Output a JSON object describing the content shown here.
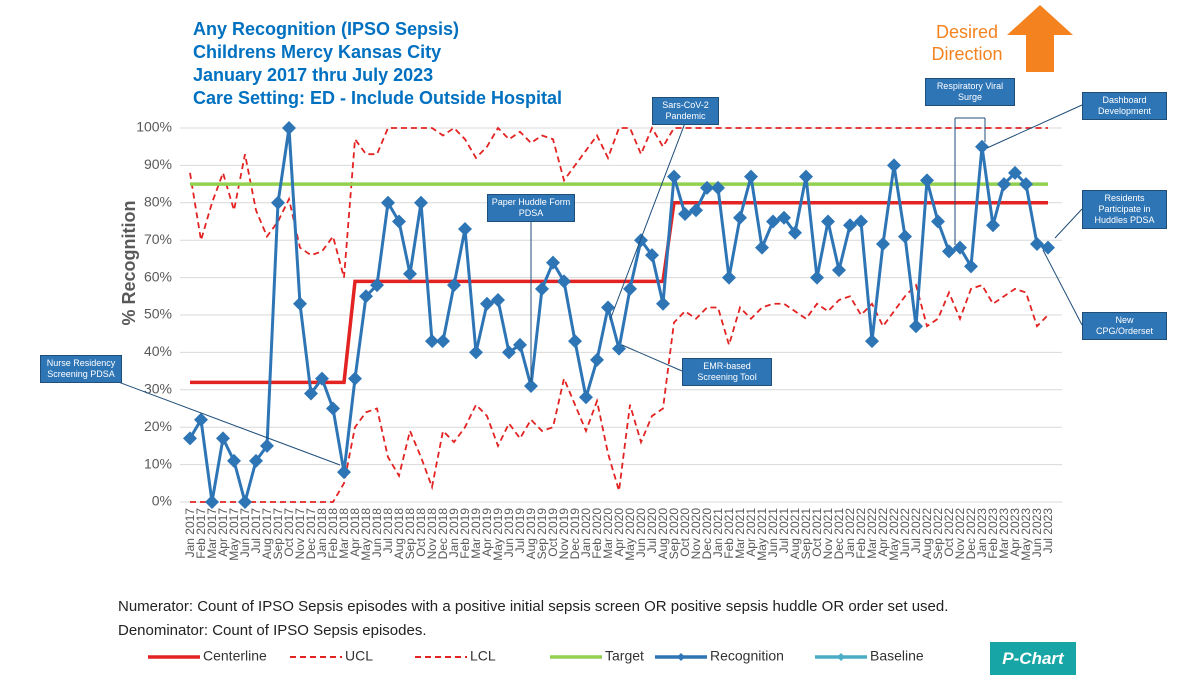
{
  "chart_data": {
    "type": "line",
    "title": [
      "Any Recognition (IPSO Sepsis)",
      "Childrens Mercy Kansas City",
      "January 2017 thru July 2023",
      "Care Setting:  ED  - Include Outside Hospital"
    ],
    "y_label": "% Recognition",
    "desired_direction": "Desired Direction",
    "footnotes": [
      "Numerator:  Count of IPSO Sepsis episodes with a positive initial sepsis screen OR positive sepsis huddle OR order set used.",
      "Denominator:  Count of IPSO Sepsis episodes."
    ],
    "chart_kind": "P-Chart",
    "categories": [
      "Jan 2017",
      "Feb 2017",
      "Mar 2017",
      "Apr 2017",
      "May 2017",
      "Jun 2017",
      "Jul 2017",
      "Aug 2017",
      "Sep 2017",
      "Oct 2017",
      "Nov 2017",
      "Dec 2017",
      "Jan 2018",
      "Feb 2018",
      "Mar 2018",
      "Apr 2018",
      "May 2018",
      "Jun 2018",
      "Jul 2018",
      "Aug 2018",
      "Sep 2018",
      "Oct 2018",
      "Nov 2018",
      "Dec 2018",
      "Jan 2019",
      "Feb 2019",
      "Mar 2019",
      "Apr 2019",
      "May 2019",
      "Jun 2019",
      "Jul 2019",
      "Aug 2019",
      "Sep 2019",
      "Oct 2019",
      "Nov 2019",
      "Dec 2019",
      "Jan 2020",
      "Feb 2020",
      "Mar 2020",
      "Apr 2020",
      "May 2020",
      "Jun 2020",
      "Jul 2020",
      "Aug 2020",
      "Sep 2020",
      "Oct 2020",
      "Nov 2020",
      "Dec 2020",
      "Jan 2021",
      "Feb 2021",
      "Mar 2021",
      "Apr 2021",
      "May 2021",
      "Jun 2021",
      "Jul 2021",
      "Aug 2021",
      "Sep 2021",
      "Oct 2021",
      "Nov 2021",
      "Dec 2021",
      "Jan 2022",
      "Feb 2022",
      "Mar 2022",
      "Apr 2022",
      "May 2022",
      "Jun 2022",
      "Jul 2022",
      "Aug 2022",
      "Sep 2022",
      "Oct 2022",
      "Nov 2022",
      "Dec 2022",
      "Jan 2023",
      "Feb 2023",
      "Mar 2023",
      "Apr 2023",
      "May 2023",
      "Jun 2023",
      "Jul 2023"
    ],
    "series": [
      {
        "name": "Centerline",
        "color": "#e32222",
        "dash": false,
        "values": [
          32,
          32,
          32,
          32,
          32,
          32,
          32,
          32,
          32,
          32,
          32,
          32,
          32,
          32,
          32,
          59,
          59,
          59,
          59,
          59,
          59,
          59,
          59,
          59,
          59,
          59,
          59,
          59,
          59,
          59,
          59,
          59,
          59,
          59,
          59,
          59,
          59,
          59,
          59,
          59,
          59,
          59,
          59,
          59,
          80,
          80,
          80,
          80,
          80,
          80,
          80,
          80,
          80,
          80,
          80,
          80,
          80,
          80,
          80,
          80,
          80,
          80,
          80,
          80,
          80,
          80,
          80,
          80,
          80,
          80,
          80,
          80,
          80,
          80,
          80,
          80,
          80,
          80,
          80
        ]
      },
      {
        "name": "UCL",
        "color": "#e32222",
        "dash": true,
        "values": [
          88,
          70,
          80,
          88,
          78,
          93,
          78,
          71,
          75,
          81,
          68,
          66,
          67,
          71,
          60,
          97,
          93,
          93,
          100,
          100,
          100,
          100,
          100,
          98,
          100,
          97,
          92,
          95,
          100,
          97,
          99,
          96,
          98,
          97,
          86,
          90,
          94,
          98,
          92,
          100,
          100,
          93,
          100,
          95,
          100,
          100,
          100,
          100,
          100,
          100,
          100,
          100,
          100,
          100,
          100,
          100,
          100,
          100,
          100,
          100,
          100,
          100,
          100,
          100,
          100,
          100,
          100,
          100,
          100,
          100,
          100,
          100,
          100,
          100,
          100,
          100,
          100,
          100,
          100
        ]
      },
      {
        "name": "LCL",
        "color": "#e32222",
        "dash": true,
        "values": [
          0,
          0,
          0,
          0,
          0,
          0,
          0,
          0,
          0,
          0,
          0,
          0,
          0,
          0,
          5,
          20,
          24,
          25,
          12,
          7,
          19,
          12,
          4,
          19,
          16,
          20,
          26,
          23,
          15,
          21,
          17,
          22,
          19,
          20,
          33,
          26,
          19,
          27,
          13,
          3,
          26,
          16,
          23,
          25,
          48,
          51,
          49,
          52,
          52,
          42,
          52,
          49,
          52,
          53,
          53,
          51,
          49,
          53,
          51,
          54,
          55,
          50,
          53,
          47,
          51,
          55,
          58,
          47,
          49,
          56,
          49,
          57,
          58,
          53,
          55,
          57,
          56,
          47,
          50
        ]
      },
      {
        "name": "Target",
        "color": "#92d050",
        "dash": false,
        "values": [
          85,
          85,
          85,
          85,
          85,
          85,
          85,
          85,
          85,
          85,
          85,
          85,
          85,
          85,
          85,
          85,
          85,
          85,
          85,
          85,
          85,
          85,
          85,
          85,
          85,
          85,
          85,
          85,
          85,
          85,
          85,
          85,
          85,
          85,
          85,
          85,
          85,
          85,
          85,
          85,
          85,
          85,
          85,
          85,
          85,
          85,
          85,
          85,
          85,
          85,
          85,
          85,
          85,
          85,
          85,
          85,
          85,
          85,
          85,
          85,
          85,
          85,
          85,
          85,
          85,
          85,
          85,
          85,
          85,
          85,
          85,
          85,
          85,
          85,
          85,
          85,
          85,
          85,
          85
        ]
      },
      {
        "name": "Recognition",
        "color": "#2e75b6",
        "dash": false,
        "markers": true,
        "values": [
          17,
          22,
          0,
          17,
          11,
          0,
          11,
          15,
          80,
          100,
          53,
          29,
          33,
          25,
          8,
          33,
          55,
          58,
          80,
          75,
          61,
          80,
          43,
          43,
          58,
          73,
          40,
          53,
          54,
          40,
          42,
          31,
          57,
          64,
          59,
          43,
          28,
          38,
          52,
          41,
          57,
          70,
          66,
          53,
          87,
          77,
          78,
          84,
          84,
          60,
          76,
          87,
          68,
          75,
          76,
          72,
          87,
          60,
          75,
          62,
          74,
          75,
          43,
          69,
          90,
          71,
          47,
          86,
          75,
          67,
          68,
          63,
          95,
          74,
          85,
          88,
          85,
          69,
          68
        ]
      },
      {
        "name": "Baseline",
        "color": "#4bacc6",
        "dash": false,
        "markers": true,
        "values": [
          null,
          null,
          null,
          null,
          null,
          null,
          null,
          null,
          null,
          null,
          null,
          null,
          null,
          null,
          null,
          null,
          null,
          null,
          null,
          null,
          null,
          null,
          null,
          null,
          null,
          null,
          null,
          null,
          null,
          null,
          null,
          null,
          null,
          null,
          null,
          null,
          null,
          null,
          null,
          null,
          null,
          null,
          null,
          null,
          null,
          null,
          null,
          null,
          null,
          null,
          null,
          null,
          null,
          null,
          null,
          null,
          null,
          null,
          null,
          null,
          null,
          null,
          null,
          null,
          null,
          null,
          null,
          null,
          null,
          null,
          null,
          null,
          null,
          null,
          null,
          null,
          null,
          null,
          null
        ]
      }
    ],
    "ylim": [
      0,
      100
    ],
    "yticks": [
      {
        "value": 0,
        "label": "0%"
      },
      {
        "value": 10,
        "label": "10%"
      },
      {
        "value": 20,
        "label": "20%"
      },
      {
        "value": 30,
        "label": "30%"
      },
      {
        "value": 40,
        "label": "40%"
      },
      {
        "value": 50,
        "label": "50%"
      },
      {
        "value": 60,
        "label": "60%"
      },
      {
        "value": 70,
        "label": "70%"
      },
      {
        "value": 80,
        "label": "80%"
      },
      {
        "value": 90,
        "label": "90%"
      },
      {
        "value": 100,
        "label": "100%"
      }
    ],
    "grid": true,
    "annotations": [
      {
        "text": "Nurse Residency Screening PDSA"
      },
      {
        "text": "Paper Huddle Form PDSA"
      },
      {
        "text": "Sars-CoV-2 Pandemic"
      },
      {
        "text": "EMR-based Screening Tool"
      },
      {
        "text": "Respiratory Viral Surge"
      },
      {
        "text": "Dashboard Development"
      },
      {
        "text": "Residents Participate in Huddles PDSA"
      },
      {
        "text": "New CPG/Orderset"
      }
    ]
  }
}
